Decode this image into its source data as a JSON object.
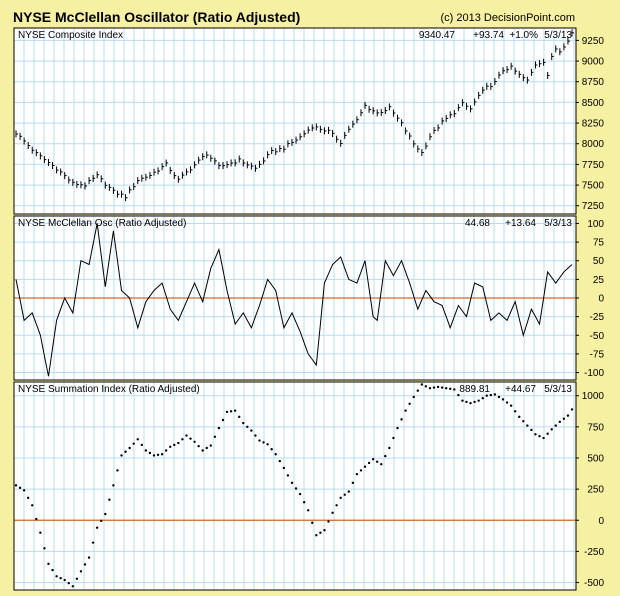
{
  "header": {
    "title": "NYSE McClellan Oscillator (Ratio Adjusted)",
    "copyright": "(c) 2013 DecisionPoint.com"
  },
  "colors": {
    "background": "#f6f0a2",
    "plot_area": "#ffffff",
    "grid": "#b8dcf4",
    "zero_line": "#d96a1a",
    "series": "#000000",
    "border": "#000000"
  },
  "chart_data": [
    {
      "type": "ohlc",
      "panel": "composite",
      "title": "NYSE Composite Index",
      "readout": {
        "last": "9340.47",
        "change": "+93.74",
        "pct": "+1.0%",
        "date": "5/3/13"
      },
      "ylim": [
        7150,
        9400
      ],
      "yticks": [
        "7250",
        "7500",
        "7750",
        "8000",
        "8250",
        "8500",
        "8750",
        "9000",
        "9250"
      ],
      "grid": true,
      "x_count": 138,
      "anchors": [
        [
          0,
          8130
        ],
        [
          5,
          7880
        ],
        [
          10,
          7700
        ],
        [
          14,
          7520
        ],
        [
          17,
          7500
        ],
        [
          20,
          7610
        ],
        [
          24,
          7420
        ],
        [
          27,
          7360
        ],
        [
          30,
          7560
        ],
        [
          33,
          7620
        ],
        [
          37,
          7750
        ],
        [
          40,
          7560
        ],
        [
          43,
          7700
        ],
        [
          47,
          7880
        ],
        [
          50,
          7720
        ],
        [
          55,
          7800
        ],
        [
          59,
          7700
        ],
        [
          63,
          7900
        ],
        [
          66,
          7950
        ],
        [
          70,
          8080
        ],
        [
          73,
          8210
        ],
        [
          77,
          8150
        ],
        [
          80,
          8020
        ],
        [
          82,
          8180
        ],
        [
          84,
          8280
        ],
        [
          86,
          8460
        ],
        [
          89,
          8370
        ],
        [
          92,
          8430
        ],
        [
          95,
          8240
        ],
        [
          98,
          8000
        ],
        [
          100,
          7890
        ],
        [
          102,
          8090
        ],
        [
          105,
          8260
        ],
        [
          108,
          8380
        ],
        [
          110,
          8480
        ],
        [
          112,
          8420
        ],
        [
          114,
          8580
        ],
        [
          116,
          8680
        ],
        [
          118,
          8740
        ],
        [
          120,
          8890
        ],
        [
          121,
          8910
        ],
        [
          122,
          8920
        ],
        [
          124,
          8830
        ],
        [
          126,
          8760
        ],
        [
          128,
          8960
        ],
        [
          130,
          9000
        ],
        [
          131,
          8830
        ],
        [
          132,
          9040
        ],
        [
          133,
          9150
        ],
        [
          134,
          9120
        ],
        [
          136,
          9260
        ],
        [
          137,
          9340
        ]
      ]
    },
    {
      "type": "line",
      "panel": "oscillator",
      "title": "NYSE McClellan Osc (Ratio Adjusted)",
      "readout": {
        "last": "44.68",
        "change": "+13.64",
        "date": "5/3/13"
      },
      "ylim": [
        -110,
        110
      ],
      "yticks": [
        "-100",
        "-75",
        "-50",
        "-25",
        "0",
        "25",
        "50",
        "75",
        "100"
      ],
      "zero_line": 0,
      "grid": true,
      "x_count": 138,
      "anchors": [
        [
          0,
          25
        ],
        [
          2,
          -30
        ],
        [
          4,
          -20
        ],
        [
          6,
          -50
        ],
        [
          8,
          -105
        ],
        [
          10,
          -30
        ],
        [
          12,
          0
        ],
        [
          14,
          -20
        ],
        [
          16,
          50
        ],
        [
          18,
          45
        ],
        [
          20,
          100
        ],
        [
          22,
          15
        ],
        [
          24,
          90
        ],
        [
          26,
          10
        ],
        [
          28,
          0
        ],
        [
          30,
          -40
        ],
        [
          32,
          -5
        ],
        [
          34,
          10
        ],
        [
          36,
          20
        ],
        [
          38,
          -15
        ],
        [
          40,
          -30
        ],
        [
          42,
          -5
        ],
        [
          44,
          20
        ],
        [
          46,
          -5
        ],
        [
          48,
          40
        ],
        [
          50,
          65
        ],
        [
          52,
          10
        ],
        [
          54,
          -35
        ],
        [
          56,
          -20
        ],
        [
          58,
          -40
        ],
        [
          60,
          -10
        ],
        [
          62,
          25
        ],
        [
          64,
          10
        ],
        [
          66,
          -40
        ],
        [
          68,
          -20
        ],
        [
          70,
          -45
        ],
        [
          72,
          -75
        ],
        [
          74,
          -90
        ],
        [
          76,
          20
        ],
        [
          78,
          45
        ],
        [
          80,
          55
        ],
        [
          82,
          25
        ],
        [
          84,
          20
        ],
        [
          86,
          50
        ],
        [
          88,
          -25
        ],
        [
          89,
          -30
        ],
        [
          91,
          50
        ],
        [
          93,
          30
        ],
        [
          95,
          50
        ],
        [
          97,
          20
        ],
        [
          99,
          -15
        ],
        [
          101,
          10
        ],
        [
          103,
          -5
        ],
        [
          105,
          -10
        ],
        [
          107,
          -40
        ],
        [
          109,
          -10
        ],
        [
          111,
          -25
        ],
        [
          113,
          20
        ],
        [
          115,
          15
        ],
        [
          117,
          -30
        ],
        [
          119,
          -20
        ],
        [
          121,
          -30
        ],
        [
          123,
          -5
        ],
        [
          125,
          -50
        ],
        [
          127,
          -15
        ],
        [
          129,
          -35
        ],
        [
          131,
          35
        ],
        [
          133,
          20
        ],
        [
          135,
          35
        ],
        [
          137,
          45
        ]
      ]
    },
    {
      "type": "scatter",
      "panel": "summation",
      "title": "NYSE Summation Index (Ratio Adjusted)",
      "readout": {
        "last": "889.81",
        "change": "+44.67",
        "date": "5/3/13"
      },
      "ylim": [
        -560,
        1110
      ],
      "yticks": [
        "-500",
        "-250",
        "0",
        "250",
        "500",
        "750",
        "1000"
      ],
      "zero_line": 0,
      "grid": true,
      "x_count": 138,
      "anchors": [
        [
          0,
          280
        ],
        [
          2,
          240
        ],
        [
          4,
          120
        ],
        [
          6,
          -100
        ],
        [
          8,
          -350
        ],
        [
          10,
          -450
        ],
        [
          12,
          -480
        ],
        [
          14,
          -530
        ],
        [
          16,
          -410
        ],
        [
          18,
          -300
        ],
        [
          20,
          -60
        ],
        [
          22,
          50
        ],
        [
          24,
          280
        ],
        [
          26,
          520
        ],
        [
          28,
          580
        ],
        [
          30,
          650
        ],
        [
          32,
          560
        ],
        [
          34,
          520
        ],
        [
          36,
          530
        ],
        [
          38,
          590
        ],
        [
          40,
          620
        ],
        [
          42,
          680
        ],
        [
          44,
          630
        ],
        [
          46,
          560
        ],
        [
          48,
          600
        ],
        [
          50,
          740
        ],
        [
          52,
          870
        ],
        [
          54,
          880
        ],
        [
          56,
          780
        ],
        [
          58,
          720
        ],
        [
          60,
          640
        ],
        [
          62,
          610
        ],
        [
          64,
          530
        ],
        [
          66,
          420
        ],
        [
          68,
          300
        ],
        [
          70,
          210
        ],
        [
          72,
          80
        ],
        [
          74,
          -120
        ],
        [
          76,
          -80
        ],
        [
          78,
          60
        ],
        [
          80,
          180
        ],
        [
          82,
          230
        ],
        [
          84,
          370
        ],
        [
          86,
          430
        ],
        [
          88,
          490
        ],
        [
          90,
          450
        ],
        [
          92,
          580
        ],
        [
          94,
          740
        ],
        [
          96,
          880
        ],
        [
          98,
          990
        ],
        [
          100,
          1090
        ],
        [
          102,
          1060
        ],
        [
          104,
          1070
        ],
        [
          106,
          1060
        ],
        [
          108,
          1050
        ],
        [
          110,
          960
        ],
        [
          112,
          940
        ],
        [
          114,
          960
        ],
        [
          116,
          1000
        ],
        [
          118,
          1010
        ],
        [
          120,
          970
        ],
        [
          122,
          920
        ],
        [
          124,
          830
        ],
        [
          126,
          760
        ],
        [
          128,
          690
        ],
        [
          130,
          660
        ],
        [
          132,
          730
        ],
        [
          134,
          790
        ],
        [
          136,
          840
        ],
        [
          137,
          890
        ]
      ]
    }
  ]
}
